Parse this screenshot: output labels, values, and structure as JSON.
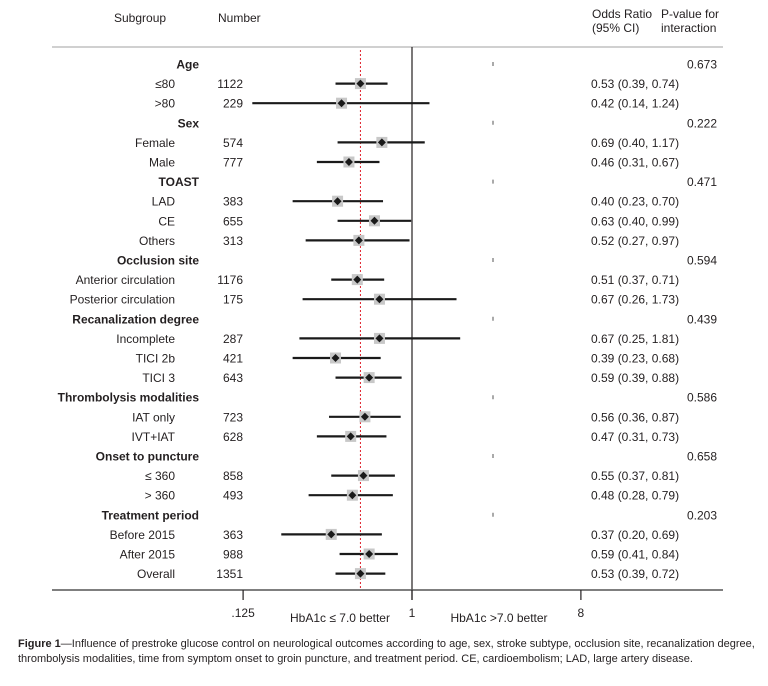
{
  "chart_data": {
    "type": "forest",
    "headers": {
      "subgroup": "Subgroup",
      "number": "Number",
      "or_line1": "Odds Ratio",
      "or_line2": "(95% CI)",
      "p_line1": "P-value for",
      "p_line2": "interaction"
    },
    "x_scale": "log2",
    "xlim": [
      0.125,
      8
    ],
    "x_ticks": [
      {
        "value": 0.125,
        "label": ".125"
      },
      {
        "value": 1,
        "label": "1"
      },
      {
        "value": 8,
        "label": "8"
      }
    ],
    "x_annotations": {
      "left": "HbA1c ≤ 7.0 better",
      "right": "HbA1c >7.0 better"
    },
    "reference_line": 1,
    "overall_line": 0.53,
    "rows": [
      {
        "type": "group",
        "label": "Age",
        "p": "0.673"
      },
      {
        "type": "item",
        "label": "≤80",
        "n": "1122",
        "or": 0.53,
        "lo": 0.39,
        "hi": 0.74,
        "text": "0.53 (0.39, 0.74)"
      },
      {
        "type": "item",
        "label": ">80",
        "n": "229",
        "or": 0.42,
        "lo": 0.14,
        "hi": 1.24,
        "text": "0.42 (0.14, 1.24)"
      },
      {
        "type": "group",
        "label": "Sex",
        "p": "0.222"
      },
      {
        "type": "item",
        "label": "Female",
        "n": "574",
        "or": 0.69,
        "lo": 0.4,
        "hi": 1.17,
        "text": "0.69 (0.40, 1.17)"
      },
      {
        "type": "item",
        "label": "Male",
        "n": "777",
        "or": 0.46,
        "lo": 0.31,
        "hi": 0.67,
        "text": "0.46 (0.31, 0.67)"
      },
      {
        "type": "group",
        "label": "TOAST",
        "p": "0.471"
      },
      {
        "type": "item",
        "label": "LAD",
        "n": "383",
        "or": 0.4,
        "lo": 0.23,
        "hi": 0.7,
        "text": "0.40 (0.23, 0.70)"
      },
      {
        "type": "item",
        "label": "CE",
        "n": "655",
        "or": 0.63,
        "lo": 0.4,
        "hi": 0.99,
        "text": "0.63 (0.40, 0.99)"
      },
      {
        "type": "item",
        "label": "Others",
        "n": "313",
        "or": 0.52,
        "lo": 0.27,
        "hi": 0.97,
        "text": "0.52 (0.27, 0.97)"
      },
      {
        "type": "group",
        "label": "Occlusion site",
        "p": "0.594"
      },
      {
        "type": "item",
        "label": "Anterior circulation",
        "n": "1176",
        "or": 0.51,
        "lo": 0.37,
        "hi": 0.71,
        "text": "0.51 (0.37, 0.71)"
      },
      {
        "type": "item",
        "label": "Posterior circulation",
        "n": "175",
        "or": 0.67,
        "lo": 0.26,
        "hi": 1.73,
        "text": "0.67 (0.26, 1.73)"
      },
      {
        "type": "group",
        "label": "Recanalization degree",
        "p": "0.439"
      },
      {
        "type": "item",
        "label": "Incomplete",
        "n": "287",
        "or": 0.67,
        "lo": 0.25,
        "hi": 1.81,
        "text": "0.67 (0.25, 1.81)"
      },
      {
        "type": "item",
        "label": "TICI 2b",
        "n": "421",
        "or": 0.39,
        "lo": 0.23,
        "hi": 0.68,
        "text": "0.39 (0.23, 0.68)"
      },
      {
        "type": "item",
        "label": "TICI 3",
        "n": "643",
        "or": 0.59,
        "lo": 0.39,
        "hi": 0.88,
        "text": "0.59 (0.39, 0.88)"
      },
      {
        "type": "group",
        "label": "Thrombolysis modalities",
        "p": "0.586"
      },
      {
        "type": "item",
        "label": "IAT only",
        "n": "723",
        "or": 0.56,
        "lo": 0.36,
        "hi": 0.87,
        "text": "0.56 (0.36, 0.87)"
      },
      {
        "type": "item",
        "label": "IVT+IAT",
        "n": "628",
        "or": 0.47,
        "lo": 0.31,
        "hi": 0.73,
        "text": "0.47 (0.31, 0.73)"
      },
      {
        "type": "group",
        "label": "Onset to puncture",
        "p": "0.658"
      },
      {
        "type": "item",
        "label": "≤ 360",
        "n": "858",
        "or": 0.55,
        "lo": 0.37,
        "hi": 0.81,
        "text": "0.55 (0.37, 0.81)"
      },
      {
        "type": "item",
        "label": "> 360",
        "n": "493",
        "or": 0.48,
        "lo": 0.28,
        "hi": 0.79,
        "text": "0.48 (0.28, 0.79)"
      },
      {
        "type": "group",
        "label": "Treatment period",
        "p": "0.203"
      },
      {
        "type": "item",
        "label": "Before 2015",
        "n": "363",
        "or": 0.37,
        "lo": 0.2,
        "hi": 0.69,
        "text": "0.37 (0.20, 0.69)"
      },
      {
        "type": "item",
        "label": "After 2015",
        "n": "988",
        "or": 0.59,
        "lo": 0.41,
        "hi": 0.84,
        "text": "0.59 (0.41, 0.84)"
      },
      {
        "type": "item",
        "label": "Overall",
        "n": "1351",
        "or": 0.53,
        "lo": 0.39,
        "hi": 0.72,
        "text": "0.53 (0.39, 0.72)"
      }
    ],
    "colors": {
      "text": "#231f20",
      "ci_line": "#1a1a1a",
      "marker_box": "#c8c8c8",
      "reference_line": "#231f20",
      "overall_line": "#e0202a",
      "frame_line": "#d0d0d0"
    }
  },
  "caption": {
    "label": "Figure 1",
    "text": "—Influence of prestroke glucose control on neurological outcomes according to age, sex, stroke subtype, occlusion site, recanalization degree, thrombolysis modalities, time from symptom onset to groin puncture, and treatment period. CE, cardioembolism; LAD, large artery disease."
  }
}
